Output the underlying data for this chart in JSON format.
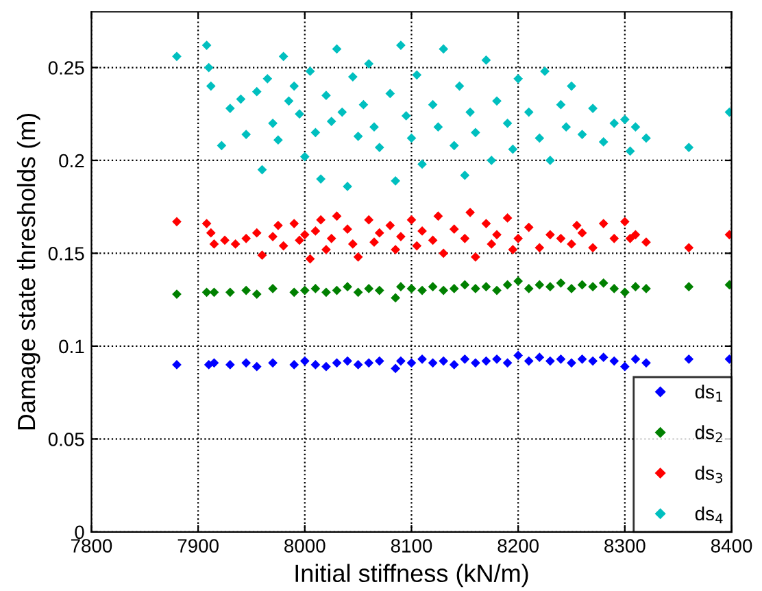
{
  "chart_data": {
    "type": "scatter",
    "xlabel": "Initial stiffness (kN/m)",
    "ylabel": "Damage state thresholds (m)",
    "xlim": [
      7800,
      8400
    ],
    "xticks": [
      7800,
      7900,
      8000,
      8100,
      8200,
      8300,
      8400
    ],
    "ylim": [
      0,
      0.28
    ],
    "yticks": [
      0,
      0.05,
      0.1,
      0.15,
      0.2,
      0.25
    ],
    "grid": true,
    "legend": "bottom right",
    "marker": "diamond",
    "series": [
      {
        "name": "ds$_{1}$",
        "color": "#0000ff",
        "x": [
          7880,
          7910,
          7915,
          7930,
          7945,
          7955,
          7970,
          7990,
          8000,
          8010,
          8020,
          8030,
          8040,
          8050,
          8060,
          8070,
          8085,
          8090,
          8100,
          8110,
          8120,
          8130,
          8140,
          8150,
          8160,
          8170,
          8180,
          8190,
          8200,
          8210,
          8220,
          8230,
          8240,
          8250,
          8260,
          8270,
          8280,
          8290,
          8300,
          8310,
          8320,
          8360,
          8398
        ],
        "values": [
          0.09,
          0.09,
          0.091,
          0.09,
          0.091,
          0.089,
          0.091,
          0.09,
          0.092,
          0.09,
          0.089,
          0.091,
          0.092,
          0.09,
          0.091,
          0.092,
          0.088,
          0.092,
          0.091,
          0.093,
          0.091,
          0.092,
          0.09,
          0.093,
          0.091,
          0.092,
          0.093,
          0.091,
          0.095,
          0.092,
          0.094,
          0.092,
          0.093,
          0.091,
          0.093,
          0.092,
          0.094,
          0.092,
          0.089,
          0.093,
          0.091,
          0.093,
          0.093
        ]
      },
      {
        "name": "ds$_{2}$",
        "color": "#008000",
        "x": [
          7880,
          7908,
          7915,
          7930,
          7945,
          7955,
          7970,
          7990,
          8000,
          8010,
          8020,
          8030,
          8040,
          8050,
          8060,
          8070,
          8085,
          8090,
          8100,
          8110,
          8120,
          8130,
          8140,
          8150,
          8160,
          8170,
          8180,
          8190,
          8200,
          8210,
          8220,
          8230,
          8240,
          8250,
          8260,
          8270,
          8280,
          8290,
          8300,
          8310,
          8320,
          8360,
          8398
        ],
        "values": [
          0.128,
          0.129,
          0.129,
          0.129,
          0.13,
          0.128,
          0.131,
          0.129,
          0.13,
          0.131,
          0.129,
          0.13,
          0.132,
          0.129,
          0.131,
          0.13,
          0.126,
          0.132,
          0.131,
          0.13,
          0.132,
          0.13,
          0.131,
          0.133,
          0.131,
          0.132,
          0.13,
          0.133,
          0.135,
          0.131,
          0.133,
          0.132,
          0.134,
          0.131,
          0.133,
          0.132,
          0.134,
          0.131,
          0.129,
          0.132,
          0.131,
          0.132,
          0.133
        ]
      },
      {
        "name": "ds$_{3}$",
        "color": "#ff0000",
        "x": [
          7880,
          7908,
          7912,
          7915,
          7925,
          7935,
          7945,
          7955,
          7960,
          7970,
          7975,
          7980,
          7990,
          7995,
          8000,
          8005,
          8010,
          8015,
          8020,
          8025,
          8030,
          8040,
          8045,
          8050,
          8060,
          8065,
          8070,
          8080,
          8085,
          8090,
          8100,
          8105,
          8110,
          8120,
          8125,
          8130,
          8140,
          8150,
          8155,
          8160,
          8170,
          8175,
          8180,
          8190,
          8195,
          8200,
          8210,
          8220,
          8230,
          8240,
          8250,
          8255,
          8260,
          8270,
          8280,
          8290,
          8300,
          8305,
          8310,
          8320,
          8360,
          8398
        ],
        "values": [
          0.167,
          0.166,
          0.161,
          0.155,
          0.157,
          0.155,
          0.158,
          0.161,
          0.149,
          0.159,
          0.165,
          0.154,
          0.166,
          0.157,
          0.16,
          0.147,
          0.162,
          0.168,
          0.152,
          0.158,
          0.17,
          0.163,
          0.155,
          0.148,
          0.168,
          0.156,
          0.161,
          0.165,
          0.152,
          0.159,
          0.168,
          0.154,
          0.162,
          0.157,
          0.17,
          0.15,
          0.163,
          0.158,
          0.172,
          0.148,
          0.166,
          0.155,
          0.16,
          0.169,
          0.152,
          0.158,
          0.164,
          0.153,
          0.16,
          0.158,
          0.155,
          0.165,
          0.161,
          0.153,
          0.166,
          0.158,
          0.167,
          0.158,
          0.16,
          0.156,
          0.153,
          0.16
        ]
      },
      {
        "name": "ds$_{4}$",
        "color": "#00bfbf",
        "x": [
          7880,
          7908,
          7910,
          7912,
          7922,
          7930,
          7940,
          7945,
          7955,
          7960,
          7965,
          7970,
          7975,
          7980,
          7985,
          7990,
          7995,
          8000,
          8005,
          8010,
          8015,
          8020,
          8025,
          8030,
          8035,
          8040,
          8045,
          8050,
          8055,
          8060,
          8065,
          8070,
          8080,
          8085,
          8090,
          8095,
          8100,
          8105,
          8110,
          8120,
          8125,
          8130,
          8140,
          8145,
          8150,
          8155,
          8160,
          8170,
          8175,
          8180,
          8190,
          8195,
          8200,
          8210,
          8220,
          8225,
          8230,
          8240,
          8245,
          8250,
          8260,
          8270,
          8280,
          8290,
          8300,
          8305,
          8310,
          8320,
          8360,
          8398
        ],
        "values": [
          0.256,
          0.262,
          0.25,
          0.24,
          0.208,
          0.228,
          0.233,
          0.214,
          0.237,
          0.195,
          0.244,
          0.22,
          0.211,
          0.256,
          0.232,
          0.24,
          0.225,
          0.202,
          0.248,
          0.215,
          0.19,
          0.235,
          0.221,
          0.26,
          0.226,
          0.186,
          0.245,
          0.213,
          0.23,
          0.252,
          0.218,
          0.207,
          0.236,
          0.189,
          0.262,
          0.224,
          0.212,
          0.246,
          0.198,
          0.23,
          0.218,
          0.26,
          0.208,
          0.24,
          0.192,
          0.226,
          0.215,
          0.254,
          0.2,
          0.232,
          0.22,
          0.206,
          0.244,
          0.226,
          0.212,
          0.248,
          0.2,
          0.23,
          0.218,
          0.24,
          0.214,
          0.228,
          0.21,
          0.22,
          0.222,
          0.205,
          0.218,
          0.212,
          0.207,
          0.226
        ]
      }
    ]
  }
}
